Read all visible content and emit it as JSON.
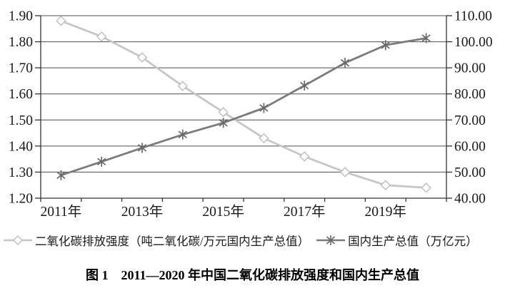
{
  "chart_data": {
    "type": "line",
    "categories": [
      2011,
      2012,
      2013,
      2014,
      2015,
      2016,
      2017,
      2018,
      2019,
      2020
    ],
    "x_tick_labels": [
      "2011年",
      "2013年",
      "2015年",
      "2017年",
      "2019年"
    ],
    "x_tick_label_indices": [
      0,
      2,
      4,
      6,
      8
    ],
    "series": [
      {
        "name": "二氧化碳排放强度（吨二氧化碳/万元国内生产总值）",
        "axis": "left",
        "marker": "diamond",
        "color": "#c6c6c6",
        "marker_color": "#bdbdbd",
        "marker_fill": "#ffffff",
        "values": [
          1.88,
          1.82,
          1.74,
          1.63,
          1.53,
          1.43,
          1.36,
          1.3,
          1.25,
          1.24
        ]
      },
      {
        "name": "国内生产总值（万亿元）",
        "axis": "right",
        "marker": "star",
        "color": "#7b7b7b",
        "marker_color": "#696969",
        "values": [
          48.8,
          54.0,
          59.3,
          64.4,
          68.9,
          74.6,
          83.2,
          91.9,
          98.7,
          101.4
        ]
      }
    ],
    "left_axis": {
      "min": 1.2,
      "max": 1.9,
      "step": 0.1,
      "decimals": 2,
      "tick_labels": [
        "1.20",
        "1.30",
        "1.40",
        "1.50",
        "1.60",
        "1.70",
        "1.80",
        "1.90"
      ]
    },
    "right_axis": {
      "min": 40,
      "max": 110,
      "step": 10,
      "decimals": 2,
      "tick_labels": [
        "40.00",
        "50.00",
        "60.00",
        "70.00",
        "80.00",
        "90.00",
        "100.00",
        "110.00"
      ]
    },
    "grid": "horizontal",
    "gridline_color": "#4d4d4d",
    "axis_color": "#333333",
    "legend_position": "bottom",
    "title": "图 1　2011—2020 年中国二氧化碳排放强度和国内生产总值"
  },
  "caption": "图 1　2011—2020 年中国二氧化碳排放强度和国内生产总值"
}
